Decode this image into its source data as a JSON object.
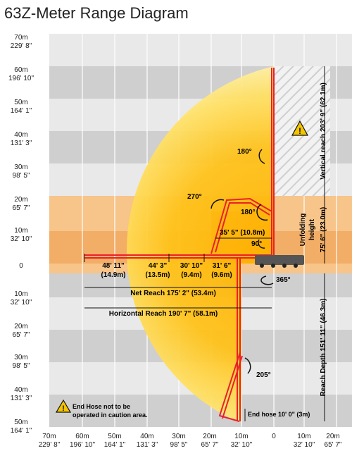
{
  "title": "63Z-Meter Range Diagram",
  "y_axis_labels": [
    {
      "m": "70m",
      "ft": "229' 8\""
    },
    {
      "m": "60m",
      "ft": "196' 10\""
    },
    {
      "m": "50m",
      "ft": "164' 1\""
    },
    {
      "m": "40m",
      "ft": "131' 3\""
    },
    {
      "m": "30m",
      "ft": "98' 5\""
    },
    {
      "m": "20m",
      "ft": "65' 7\""
    },
    {
      "m": "10m",
      "ft": "32' 10\""
    },
    {
      "m": "0",
      "ft": ""
    },
    {
      "m": "10m",
      "ft": "32' 10\""
    },
    {
      "m": "20m",
      "ft": "65' 7\""
    },
    {
      "m": "30m",
      "ft": "98' 5\""
    },
    {
      "m": "40m",
      "ft": "131' 3\""
    },
    {
      "m": "50m",
      "ft": "164' 1\""
    }
  ],
  "x_axis_labels": [
    {
      "m": "70m",
      "ft": "229' 8\""
    },
    {
      "m": "60m",
      "ft": "196' 10\""
    },
    {
      "m": "50m",
      "ft": "164' 1\""
    },
    {
      "m": "40m",
      "ft": "131' 3\""
    },
    {
      "m": "30m",
      "ft": "98' 5\""
    },
    {
      "m": "20m",
      "ft": "65' 7\""
    },
    {
      "m": "10m",
      "ft": "32' 10\""
    },
    {
      "m": "0",
      "ft": ""
    },
    {
      "m": "10m",
      "ft": "32' 10\""
    },
    {
      "m": "20m",
      "ft": "65' 7\""
    }
  ],
  "sections": [
    {
      "ft": "48' 11\"",
      "m": "(14.9m)"
    },
    {
      "ft": "44' 3\"",
      "m": "(13.5m)"
    },
    {
      "ft": "30' 10\"",
      "m": "(9.4m)"
    },
    {
      "ft": "31' 6\"",
      "m": "(9.6m)"
    }
  ],
  "annotations": {
    "angle_180_top": "180°",
    "angle_270": "270°",
    "angle_180_mid": "180°",
    "angle_90": "90°",
    "angle_365": "365°",
    "angle_205": "205°",
    "reach_355": "35' 5\" (10.8m)",
    "net_reach": "Net Reach 175' 2\" (53.4m)",
    "horizontal_reach": "Horizontal Reach 190' 7\" (58.1m)",
    "vertical_reach": "Vertical reach 203' 9\" (62.1m)",
    "unfolding_height_1": "Unfolding",
    "unfolding_height_2": "height",
    "unfolding_height_3": "75' 6\" (23.0m)",
    "reach_depth": "Reach Depth 151' 11\" (46.3m)",
    "end_hose_depth": "End hose 10' 0\" (3m)",
    "caution_line1": "End Hose not to be",
    "caution_line2": "operated in caution area."
  },
  "colors": {
    "envelope_outer": "#ffe98a",
    "envelope_inner": "#ffc21a",
    "boom_red": "#e8212b",
    "band_gray": "#cfcfcf",
    "band_light": "#e6e6e6",
    "unfold_band": "#f5b971"
  }
}
